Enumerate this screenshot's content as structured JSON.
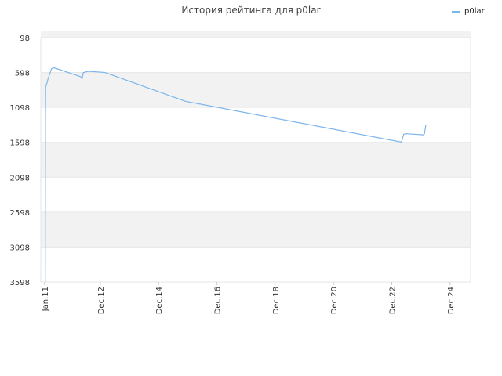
{
  "chart_data": {
    "type": "line",
    "title": "История рейтинга для p0lar",
    "xlabel": "",
    "ylabel": "",
    "y_axis_reversed": true,
    "ylim": [
      98,
      3598
    ],
    "y_ticks": [
      98,
      598,
      1098,
      1598,
      2098,
      2598,
      3098,
      3598
    ],
    "x_ticks": [
      "Jan.11",
      "Dec.12",
      "Dec.14",
      "Dec.16",
      "Dec.18",
      "Dec.20",
      "Dec.22",
      "Dec.24"
    ],
    "x_tick_dates": [
      "2011-01-01",
      "2012-12-01",
      "2014-12-01",
      "2016-12-01",
      "2018-12-01",
      "2020-12-01",
      "2022-12-01",
      "2024-12-01"
    ],
    "xlim": [
      "2010-11-15",
      "2025-08-15"
    ],
    "legend_position": "top-right",
    "colors": {
      "series": "#7cb5ec",
      "band": "#f2f2f2",
      "grid": "#e6e6e6"
    },
    "series": [
      {
        "name": "p0lar",
        "points": [
          [
            "2011-01-10",
            3598
          ],
          [
            "2011-01-12",
            1300
          ],
          [
            "2011-01-15",
            800
          ],
          [
            "2011-02-01",
            750
          ],
          [
            "2011-02-15",
            680
          ],
          [
            "2011-03-01",
            640
          ],
          [
            "2011-04-01",
            540
          ],
          [
            "2011-05-01",
            530
          ],
          [
            "2012-04-01",
            660
          ],
          [
            "2012-04-15",
            690
          ],
          [
            "2012-05-01",
            600
          ],
          [
            "2012-07-01",
            580
          ],
          [
            "2013-01-01",
            595
          ],
          [
            "2013-02-01",
            600
          ],
          [
            "2015-11-01",
            1010
          ],
          [
            "2023-04-01",
            1595
          ],
          [
            "2023-04-15",
            1540
          ],
          [
            "2023-05-01",
            1480
          ],
          [
            "2023-06-01",
            1475
          ],
          [
            "2024-01-01",
            1490
          ],
          [
            "2024-01-15",
            1475
          ],
          [
            "2024-02-01",
            1350
          ]
        ]
      }
    ]
  }
}
